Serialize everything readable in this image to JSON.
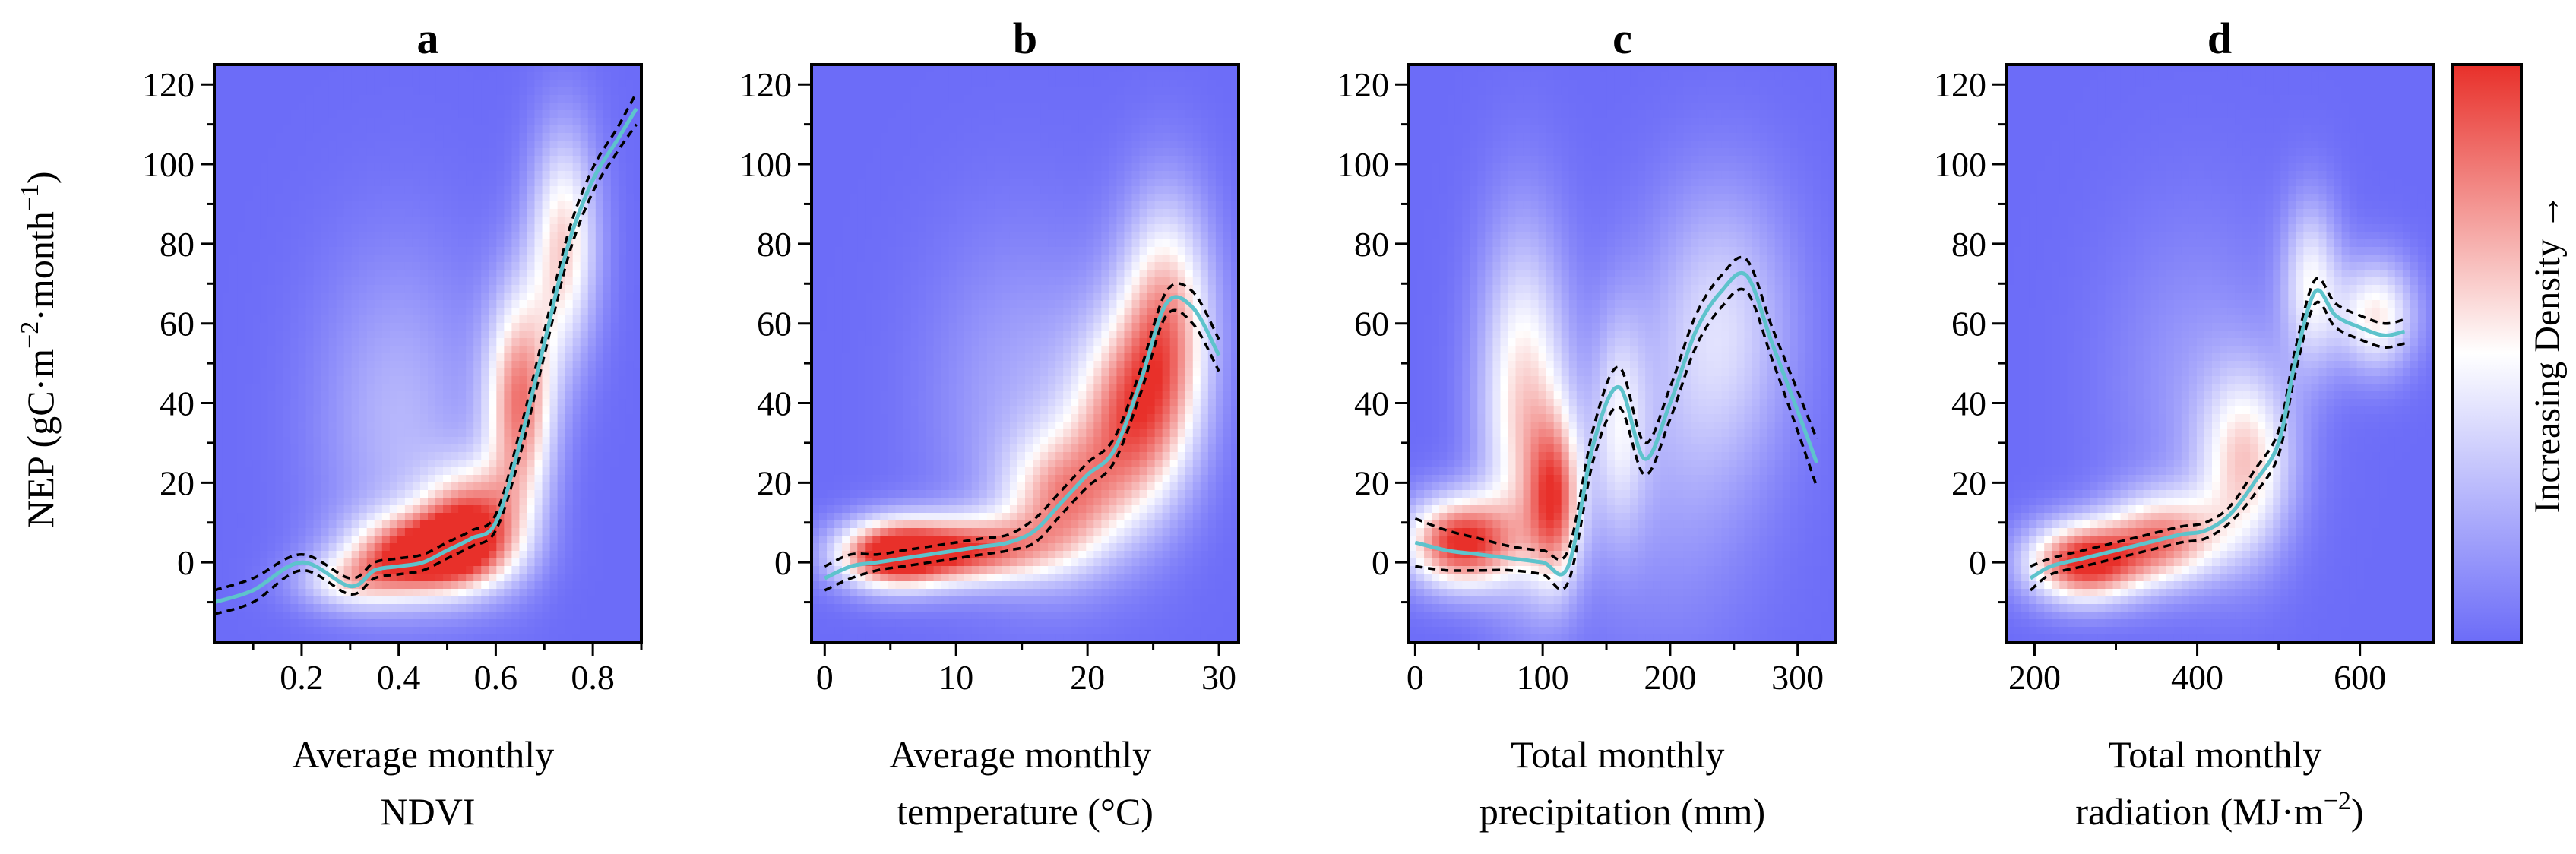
{
  "chart_data": {
    "type": "heatmap",
    "colors": {
      "high": "#e8302a",
      "mid": "#ffffff",
      "low": "#6c6cf8",
      "fit": "#5ec3cc",
      "ci": "#000000"
    },
    "y_axis": {
      "label_parts": [
        "NEP (gC·m",
        "−2",
        "·month",
        "−1",
        ")"
      ],
      "ylim": [
        -20,
        125
      ],
      "ticks": [
        0,
        20,
        40,
        60,
        80,
        100,
        120
      ],
      "tick_labels": [
        "0",
        "20",
        "40",
        "60",
        "80",
        "100",
        "120"
      ]
    },
    "colorbar": {
      "label": "Increasing Density →"
    },
    "panels": [
      {
        "letter": "a",
        "xlabel_lines": [
          "Average monthly",
          "NDVI"
        ],
        "xlim": [
          0.02,
          0.9
        ],
        "xticks": [
          0.2,
          0.4,
          0.6,
          0.8
        ],
        "xtick_labels": [
          "0.2",
          "0.4",
          "0.6",
          "0.8"
        ],
        "fit": {
          "x": [
            0.02,
            0.1,
            0.2,
            0.3,
            0.35,
            0.4,
            0.45,
            0.5,
            0.55,
            0.6,
            0.65,
            0.7,
            0.75,
            0.8,
            0.85,
            0.89
          ],
          "y": [
            -10,
            -7,
            0,
            -6,
            -2,
            -1,
            0,
            3,
            6,
            10,
            30,
            55,
            80,
            96,
            106,
            114
          ]
        },
        "ci_half_width": [
          3,
          3,
          2,
          2,
          2,
          2,
          2,
          2,
          2,
          2,
          3,
          3,
          3,
          3,
          3,
          4
        ],
        "density": [
          {
            "x": 0.45,
            "y": 2,
            "sx": 0.1,
            "sy": 7,
            "w": 1.0
          },
          {
            "x": 0.55,
            "y": 10,
            "sx": 0.07,
            "sy": 10,
            "w": 0.75
          },
          {
            "x": 0.65,
            "y": 40,
            "sx": 0.05,
            "sy": 20,
            "w": 0.8
          },
          {
            "x": 0.74,
            "y": 80,
            "sx": 0.05,
            "sy": 20,
            "w": 0.6
          },
          {
            "x": 0.4,
            "y": 35,
            "sx": 0.12,
            "sy": 30,
            "w": 0.25
          },
          {
            "x": 0.3,
            "y": -5,
            "sx": 0.08,
            "sy": 5,
            "w": 0.4
          }
        ]
      },
      {
        "letter": "b",
        "xlabel_lines": [
          "Average monthly",
          "temperature (°C)"
        ],
        "xlim": [
          -1,
          31.5
        ],
        "xticks": [
          0,
          10,
          20,
          30
        ],
        "xtick_labels": [
          "0",
          "10",
          "20",
          "30"
        ],
        "fit": {
          "x": [
            0,
            2,
            4,
            6,
            8,
            10,
            12,
            14,
            16,
            18,
            20,
            22,
            24,
            26,
            28,
            30
          ],
          "y": [
            -4,
            -1,
            0,
            1,
            2,
            3,
            4,
            5,
            8,
            15,
            22,
            28,
            45,
            65,
            64,
            52
          ]
        },
        "ci_half_width": [
          3,
          3,
          2,
          2,
          2,
          2,
          2,
          2,
          3,
          3,
          3,
          3,
          3,
          3,
          4,
          4
        ],
        "density": [
          {
            "x": 5,
            "y": 2,
            "sx": 3,
            "sy": 6,
            "w": 1.0
          },
          {
            "x": 11,
            "y": 3,
            "sx": 4,
            "sy": 6,
            "w": 0.8
          },
          {
            "x": 18,
            "y": 15,
            "sx": 3,
            "sy": 12,
            "w": 0.6
          },
          {
            "x": 23,
            "y": 35,
            "sx": 3,
            "sy": 18,
            "w": 0.7
          },
          {
            "x": 26,
            "y": 60,
            "sx": 2.5,
            "sy": 22,
            "w": 0.7
          },
          {
            "x": 15,
            "y": 40,
            "sx": 5,
            "sy": 30,
            "w": 0.2
          }
        ]
      },
      {
        "letter": "c",
        "xlabel_lines": [
          "Total monthly",
          "precipitation (mm)"
        ],
        "xlim": [
          -5,
          330
        ],
        "xticks": [
          0,
          100,
          200,
          300
        ],
        "xtick_labels": [
          "0",
          "100",
          "200",
          "300"
        ],
        "fit": {
          "x": [
            0,
            25,
            50,
            75,
            100,
            120,
            140,
            160,
            180,
            200,
            220,
            240,
            260,
            280,
            300,
            315
          ],
          "y": [
            5,
            3,
            2,
            1,
            0,
            -1,
            30,
            44,
            26,
            40,
            58,
            68,
            72,
            55,
            38,
            25
          ]
        },
        "ci_half_width": [
          6,
          5,
          4,
          3,
          3,
          4,
          4,
          5,
          4,
          4,
          4,
          4,
          4,
          4,
          5,
          6
        ],
        "density": [
          {
            "x": 35,
            "y": 5,
            "sx": 30,
            "sy": 8,
            "w": 1.0
          },
          {
            "x": 85,
            "y": 40,
            "sx": 25,
            "sy": 30,
            "w": 0.6
          },
          {
            "x": 110,
            "y": 15,
            "sx": 15,
            "sy": 15,
            "w": 0.7
          },
          {
            "x": 160,
            "y": 35,
            "sx": 15,
            "sy": 20,
            "w": 0.35
          },
          {
            "x": 240,
            "y": 60,
            "sx": 40,
            "sy": 25,
            "w": 0.35
          },
          {
            "x": 200,
            "y": 20,
            "sx": 50,
            "sy": 30,
            "w": 0.15
          }
        ]
      },
      {
        "letter": "d",
        "xlabel_lines": [
          "Total monthly",
          "radiation (MJ·m",
          "−2",
          ")"
        ],
        "xlim": [
          165,
          690
        ],
        "xticks": [
          200,
          400,
          600
        ],
        "xtick_labels": [
          "200",
          "400",
          "600"
        ],
        "fit": {
          "x": [
            195,
            220,
            260,
            300,
            340,
            380,
            410,
            440,
            470,
            500,
            520,
            545,
            570,
            600,
            630,
            655
          ],
          "y": [
            -4,
            -1,
            1,
            3,
            5,
            7,
            8,
            12,
            20,
            30,
            50,
            68,
            62,
            59,
            57,
            58
          ]
        },
        "ci_half_width": [
          3,
          2,
          2,
          2,
          2,
          2,
          2,
          2,
          3,
          3,
          3,
          3,
          3,
          3,
          3,
          3
        ],
        "density": [
          {
            "x": 260,
            "y": 0,
            "sx": 50,
            "sy": 7,
            "w": 1.0
          },
          {
            "x": 360,
            "y": 6,
            "sx": 50,
            "sy": 8,
            "w": 0.7
          },
          {
            "x": 460,
            "y": 25,
            "sx": 40,
            "sy": 16,
            "w": 0.55
          },
          {
            "x": 540,
            "y": 70,
            "sx": 25,
            "sy": 15,
            "w": 0.45
          },
          {
            "x": 620,
            "y": 62,
            "sx": 35,
            "sy": 10,
            "w": 0.55
          },
          {
            "x": 400,
            "y": 45,
            "sx": 80,
            "sy": 30,
            "w": 0.15
          }
        ]
      }
    ]
  }
}
